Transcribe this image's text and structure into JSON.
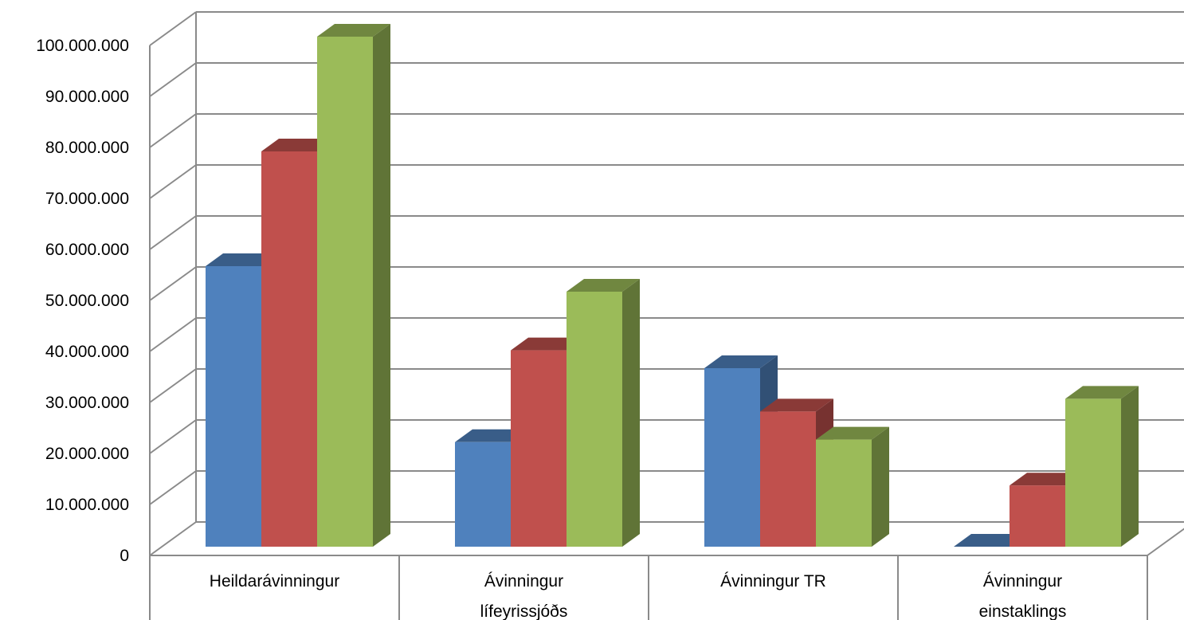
{
  "chart_data": {
    "type": "bar",
    "style": "3d-clustered-column",
    "categories": [
      [
        "Heildarávinningur"
      ],
      [
        "Ávinningur",
        "lífeyrissjóðs"
      ],
      [
        "Ávinningur TR"
      ],
      [
        "Ávinningur",
        "einstaklings"
      ]
    ],
    "series": [
      {
        "color": "#4f81bd",
        "values": [
          55000000,
          20500000,
          35000000,
          0
        ]
      },
      {
        "color": "#c0504d",
        "values": [
          77500000,
          38500000,
          26500000,
          12000000
        ]
      },
      {
        "color": "#9bbb59",
        "values": [
          100000000,
          50000000,
          21000000,
          29000000
        ]
      }
    ],
    "yticks": [
      "0",
      "10.000.000",
      "20.000.000",
      "30.000.000",
      "40.000.000",
      "50.000.000",
      "60.000.000",
      "70.000.000",
      "80.000.000",
      "90.000.000",
      "100.000.000"
    ],
    "ylim": [
      0,
      100000000
    ],
    "grid": true,
    "legend": "none"
  }
}
